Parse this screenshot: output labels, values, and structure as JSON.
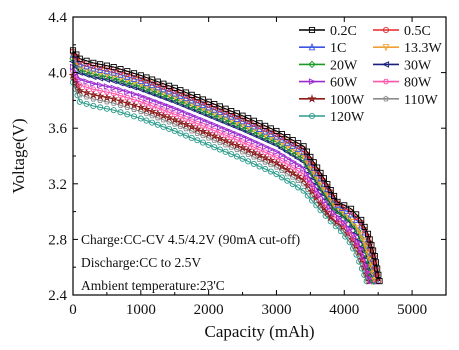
{
  "chart_data": {
    "type": "line",
    "xlabel": "Capacity (mAh)",
    "ylabel": "Voltage(V)",
    "xlim": [
      0,
      5500
    ],
    "ylim": [
      2.4,
      4.4
    ],
    "x_ticks": [
      0,
      1000,
      2000,
      3000,
      4000,
      5000
    ],
    "y_ticks": [
      2.4,
      2.8,
      3.2,
      3.6,
      4.0,
      4.4
    ],
    "x_tick_labels": [
      "0",
      "1000",
      "2000",
      "3000",
      "4000",
      "5000"
    ],
    "y_tick_labels": [
      "2.4",
      "2.8",
      "3.2",
      "3.6",
      "4.0",
      "4.4"
    ],
    "grid": false,
    "legend_position": "top-right",
    "annotations": [
      "Charge:CC-CV 4.5/4.2V (90mA cut-off)",
      "Discharge:CC to 2.5V",
      "Ambient temperature:23'C"
    ],
    "series": [
      {
        "name": "0.2C",
        "color": "#000000",
        "marker": "square",
        "x": [
          0,
          100,
          300,
          600,
          1000,
          1500,
          2000,
          2500,
          3000,
          3400,
          3700,
          3900,
          4100,
          4250,
          4350,
          4450,
          4520
        ],
        "y": [
          4.16,
          4.1,
          4.07,
          4.04,
          3.98,
          3.89,
          3.79,
          3.69,
          3.58,
          3.47,
          3.24,
          3.07,
          3.02,
          2.94,
          2.84,
          2.68,
          2.5
        ]
      },
      {
        "name": "0.5C",
        "color": "#e8262a",
        "marker": "circle",
        "x": [
          0,
          100,
          300,
          600,
          1000,
          1500,
          2000,
          2500,
          3000,
          3400,
          3700,
          3900,
          4100,
          4250,
          4350,
          4430,
          4500
        ],
        "y": [
          4.15,
          4.08,
          4.05,
          4.02,
          3.96,
          3.87,
          3.77,
          3.67,
          3.56,
          3.45,
          3.22,
          3.06,
          3.0,
          2.92,
          2.82,
          2.68,
          2.5
        ]
      },
      {
        "name": "1C",
        "color": "#3a55e6",
        "marker": "triangle",
        "x": [
          0,
          100,
          300,
          600,
          1000,
          1500,
          2000,
          2500,
          3000,
          3400,
          3700,
          3900,
          4100,
          4250,
          4350,
          4420,
          4480
        ],
        "y": [
          4.13,
          4.06,
          4.03,
          4.0,
          3.94,
          3.85,
          3.75,
          3.65,
          3.54,
          3.43,
          3.2,
          3.05,
          2.98,
          2.9,
          2.8,
          2.66,
          2.5
        ]
      },
      {
        "name": "13.3W",
        "color": "#f0a030",
        "marker": "triangle-down",
        "x": [
          0,
          100,
          300,
          600,
          1000,
          1500,
          2000,
          2500,
          3000,
          3400,
          3650,
          3850,
          4050,
          4200,
          4300,
          4380,
          4450
        ],
        "y": [
          4.12,
          4.04,
          4.01,
          3.98,
          3.92,
          3.83,
          3.73,
          3.63,
          3.52,
          3.4,
          3.2,
          3.05,
          2.97,
          2.88,
          2.78,
          2.65,
          2.5
        ]
      },
      {
        "name": "20W",
        "color": "#1a9a2a",
        "marker": "diamond",
        "x": [
          0,
          100,
          300,
          600,
          1000,
          1500,
          2000,
          2500,
          3000,
          3400,
          3650,
          3850,
          4050,
          4200,
          4300,
          4370,
          4430
        ],
        "y": [
          4.1,
          4.02,
          3.99,
          3.96,
          3.9,
          3.81,
          3.71,
          3.61,
          3.5,
          3.38,
          3.18,
          3.03,
          2.95,
          2.86,
          2.76,
          2.64,
          2.5
        ]
      },
      {
        "name": "30W",
        "color": "#1a1f7a",
        "marker": "triangle-left",
        "x": [
          0,
          100,
          300,
          600,
          1000,
          1500,
          2000,
          2500,
          3000,
          3400,
          3650,
          3850,
          4050,
          4180,
          4280,
          4360,
          4420
        ],
        "y": [
          4.08,
          4.0,
          3.97,
          3.94,
          3.88,
          3.79,
          3.69,
          3.59,
          3.48,
          3.36,
          3.16,
          3.02,
          2.94,
          2.85,
          2.75,
          2.63,
          2.5
        ]
      },
      {
        "name": "60W",
        "color": "#9a2ad0",
        "marker": "triangle-right",
        "x": [
          0,
          100,
          300,
          600,
          1000,
          1500,
          2000,
          2500,
          3000,
          3400,
          3650,
          3850,
          4000,
          4150,
          4250,
          4330,
          4400
        ],
        "y": [
          4.04,
          3.95,
          3.92,
          3.89,
          3.83,
          3.74,
          3.64,
          3.54,
          3.43,
          3.31,
          3.12,
          2.99,
          2.92,
          2.83,
          2.73,
          2.62,
          2.5
        ]
      },
      {
        "name": "80W",
        "color": "#ff55aa",
        "marker": "hexagon",
        "x": [
          0,
          100,
          300,
          600,
          1000,
          1500,
          2000,
          2500,
          3000,
          3400,
          3650,
          3850,
          4000,
          4140,
          4240,
          4320,
          4390
        ],
        "y": [
          4.01,
          3.91,
          3.88,
          3.85,
          3.79,
          3.7,
          3.6,
          3.5,
          3.39,
          3.27,
          3.09,
          2.97,
          2.9,
          2.81,
          2.72,
          2.61,
          2.5
        ]
      },
      {
        "name": "100W",
        "color": "#8a1a1a",
        "marker": "star",
        "x": [
          0,
          100,
          300,
          600,
          1000,
          1500,
          2000,
          2500,
          3000,
          3400,
          3650,
          3800,
          3980,
          4120,
          4220,
          4300,
          4370
        ],
        "y": [
          3.98,
          3.87,
          3.84,
          3.81,
          3.75,
          3.66,
          3.56,
          3.46,
          3.35,
          3.23,
          3.06,
          2.96,
          2.89,
          2.8,
          2.71,
          2.6,
          2.5
        ]
      },
      {
        "name": "110W",
        "color": "#8c8c8c",
        "marker": "pentagon",
        "x": [
          0,
          100,
          300,
          600,
          1000,
          1500,
          2000,
          2500,
          3000,
          3400,
          3650,
          3800,
          3960,
          4100,
          4200,
          4280,
          4350
        ],
        "y": [
          3.96,
          3.84,
          3.81,
          3.78,
          3.72,
          3.63,
          3.53,
          3.43,
          3.32,
          3.2,
          3.04,
          2.95,
          2.88,
          2.79,
          2.7,
          2.6,
          2.5
        ]
      },
      {
        "name": "120W",
        "color": "#2a9a8a",
        "marker": "circle",
        "x": [
          0,
          100,
          300,
          600,
          1000,
          1500,
          2000,
          2500,
          3000,
          3400,
          3650,
          3800,
          3950,
          4080,
          4180,
          4260,
          4330
        ],
        "y": [
          3.93,
          3.79,
          3.76,
          3.73,
          3.67,
          3.58,
          3.48,
          3.38,
          3.27,
          3.15,
          3.01,
          2.93,
          2.86,
          2.78,
          2.69,
          2.59,
          2.5
        ]
      }
    ]
  }
}
